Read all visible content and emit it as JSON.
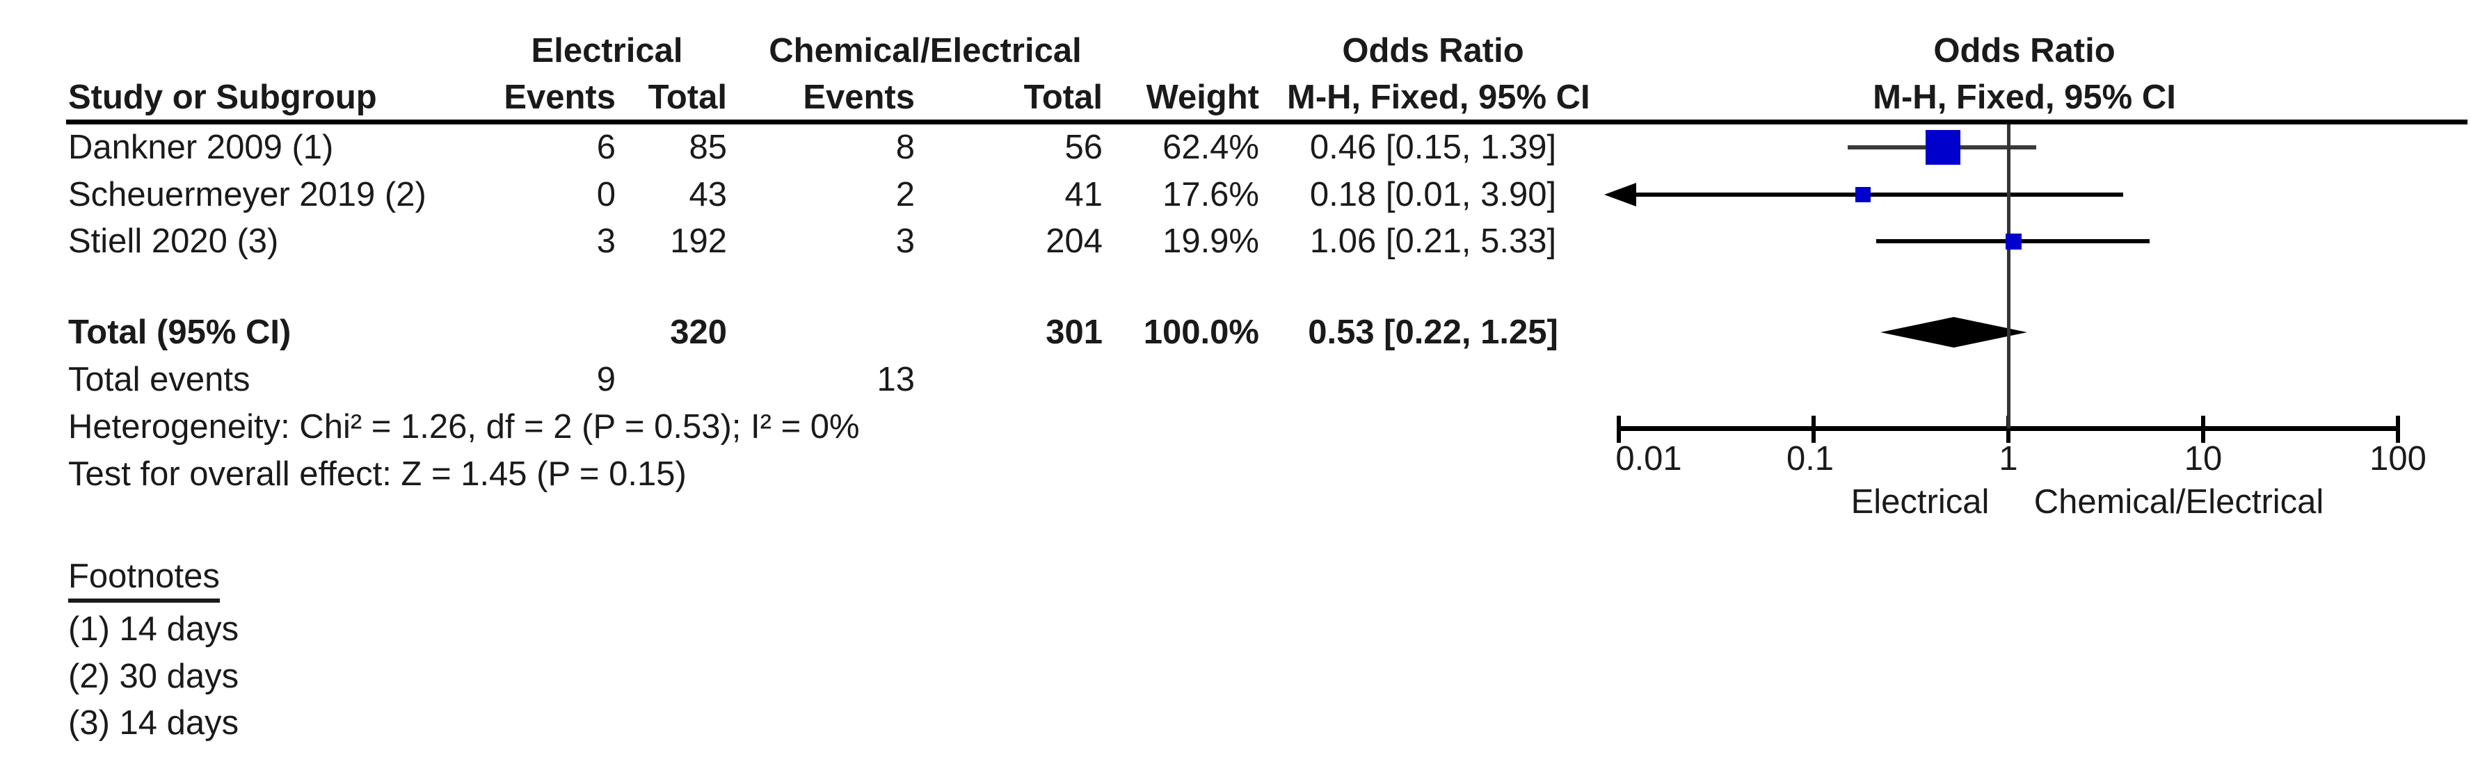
{
  "table": {
    "headers": {
      "study": "Study or Subgroup",
      "group1": "Electrical",
      "group2": "Chemical/Electrical",
      "events1": "Events",
      "total1": "Total",
      "events2": "Events",
      "total2": "Total",
      "weight": "Weight",
      "or_table": "Odds Ratio",
      "or_method": "M-H, Fixed, 95% CI",
      "or_plot": "Odds Ratio",
      "or_method_plot": "M-H, Fixed, 95% CI"
    },
    "rows": [
      {
        "study": "Dankner 2009 (1)",
        "e1": "6",
        "t1": "85",
        "e2": "8",
        "t2": "56",
        "weight": "62.4%",
        "or_ci": "0.46 [0.15, 1.39]"
      },
      {
        "study": "Scheuermeyer 2019 (2)",
        "e1": "0",
        "t1": "43",
        "e2": "2",
        "t2": "41",
        "weight": "17.6%",
        "or_ci": "0.18 [0.01, 3.90]"
      },
      {
        "study": "Stiell 2020 (3)",
        "e1": "3",
        "t1": "192",
        "e2": "3",
        "t2": "204",
        "weight": "19.9%",
        "or_ci": "1.06 [0.21, 5.33]"
      }
    ],
    "total_row": {
      "label": "Total (95% CI)",
      "t1": "320",
      "t2": "301",
      "weight": "100.0%",
      "or_ci": "0.53 [0.22, 1.25]"
    },
    "total_events": {
      "label": "Total events",
      "e1": "9",
      "e2": "13"
    },
    "heterogeneity": "Heterogeneity: Chi² = 1.26, df = 2 (P = 0.53); I² = 0%",
    "overall_effect": "Test for overall effect: Z = 1.45 (P = 0.15)"
  },
  "footnotes": {
    "title": "Footnotes",
    "items": [
      "(1) 14 days",
      "(2) 30 days",
      "(3) 14 days"
    ]
  },
  "chart_data": {
    "type": "scatter",
    "subtype": "forest-plot",
    "title": "Odds Ratio",
    "method": "M-H, Fixed, 95% CI",
    "x_axis": {
      "scale": "log",
      "range": [
        0.01,
        100
      ],
      "ticks": [
        0.01,
        0.1,
        1,
        10,
        100
      ],
      "tick_labels": [
        "0.01",
        "0.1",
        "1",
        "10",
        "100"
      ],
      "label_left": "Electrical",
      "label_right": "Chemical/Electrical"
    },
    "studies": [
      {
        "name": "Dankner 2009 (1)",
        "or": 0.46,
        "ci_low": 0.15,
        "ci_high": 1.39,
        "weight_pct": 62.4,
        "ci_color": "#3a3a3a"
      },
      {
        "name": "Scheuermeyer 2019 (2)",
        "or": 0.18,
        "ci_low": 0.01,
        "ci_high": 3.9,
        "weight_pct": 17.6,
        "ci_color": "#000000"
      },
      {
        "name": "Stiell 2020 (3)",
        "or": 1.06,
        "ci_low": 0.21,
        "ci_high": 5.33,
        "weight_pct": 19.9,
        "ci_color": "#000000"
      }
    ],
    "total": {
      "label": "Total (95% CI)",
      "or": 0.53,
      "ci_low": 0.22,
      "ci_high": 1.25
    },
    "marker_color": "#0000cc",
    "diamond_color": "#000000",
    "grid": false,
    "legend": false
  }
}
